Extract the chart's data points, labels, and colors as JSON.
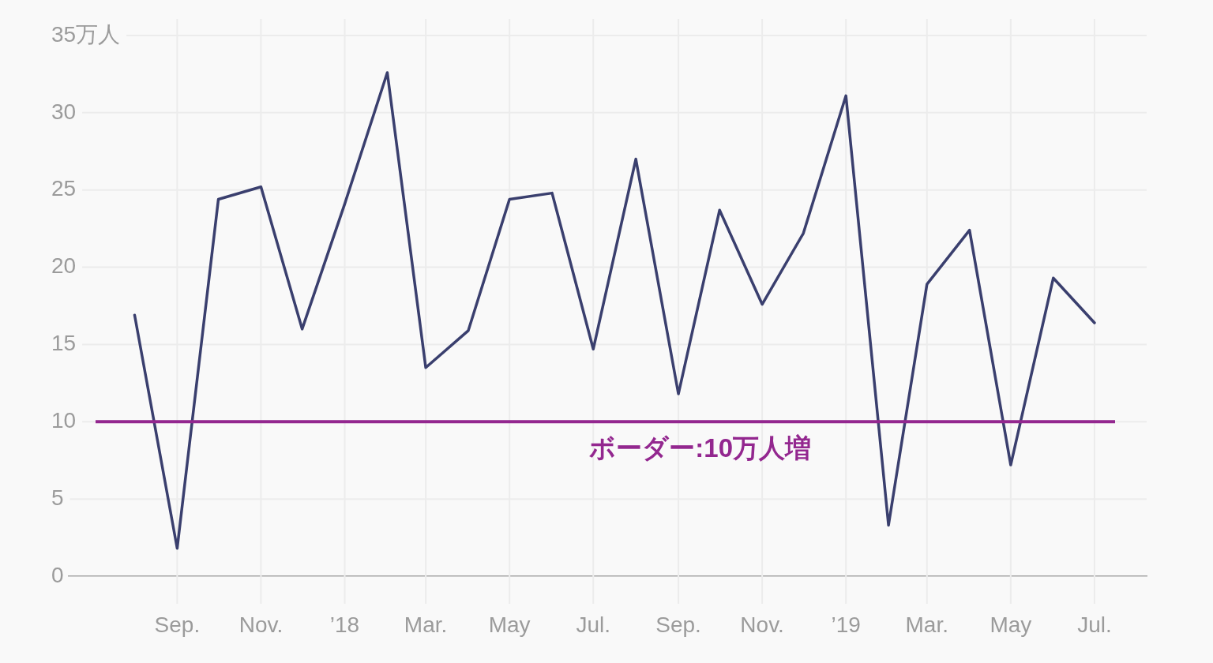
{
  "chart_data": {
    "type": "line",
    "x": [
      "2017-08",
      "2017-09",
      "2017-10",
      "2017-11",
      "2017-12",
      "2018-01",
      "2018-02",
      "2018-03",
      "2018-04",
      "2018-05",
      "2018-06",
      "2018-07",
      "2018-08",
      "2018-09",
      "2018-10",
      "2018-11",
      "2018-12",
      "2019-01",
      "2019-02",
      "2019-03",
      "2019-04",
      "2019-05",
      "2019-06",
      "2019-07"
    ],
    "series": [
      {
        "color": "#3a3f6e",
        "values": [
          16.9,
          1.8,
          24.4,
          25.2,
          16.0,
          24.1,
          32.6,
          13.5,
          15.9,
          24.4,
          24.8,
          14.7,
          27.0,
          11.8,
          23.7,
          17.6,
          22.2,
          31.1,
          3.3,
          18.9,
          22.4,
          7.2,
          19.3,
          16.4
        ]
      }
    ],
    "xlim": [
      "2017-06-14",
      "2019-08-08"
    ],
    "xticks": [
      {
        "value": "2017-09",
        "label": "Sep."
      },
      {
        "value": "2017-11",
        "label": "Nov."
      },
      {
        "value": "2018-01",
        "label": "’18"
      },
      {
        "value": "2018-03",
        "label": "Mar."
      },
      {
        "value": "2018-05",
        "label": "May"
      },
      {
        "value": "2018-07",
        "label": "Jul."
      },
      {
        "value": "2018-09",
        "label": "Sep."
      },
      {
        "value": "2018-11",
        "label": "Nov."
      },
      {
        "value": "2019-01",
        "label": "’19"
      },
      {
        "value": "2019-03",
        "label": "Mar."
      },
      {
        "value": "2019-05",
        "label": "May"
      },
      {
        "value": "2019-07",
        "label": "Jul."
      }
    ],
    "ylim": [
      0,
      35
    ],
    "yticks": [
      0,
      5,
      10,
      15,
      20,
      25,
      30,
      {
        "value": 35,
        "label": "35万人"
      }
    ],
    "grid": true,
    "line_style": "solid",
    "ref_lines": [
      {
        "axis": "y",
        "value": 10,
        "label": "ボーダー:10万人増",
        "color": "#93278f"
      }
    ]
  }
}
